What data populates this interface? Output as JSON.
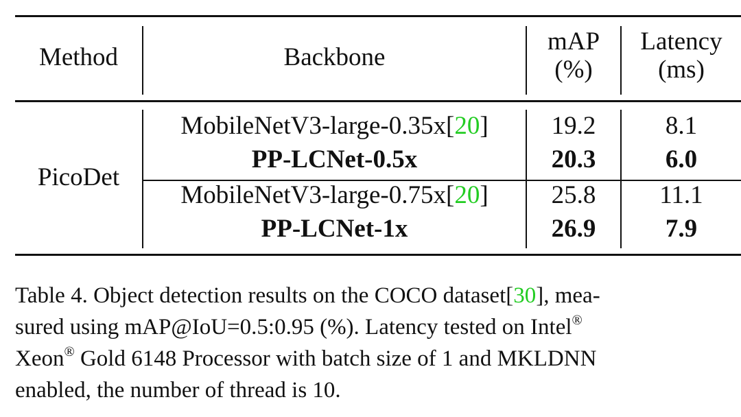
{
  "table": {
    "headers": {
      "method": "Method",
      "backbone": "Backbone",
      "map_line1": "mAP",
      "map_line2": "(%)",
      "latency_line1": "Latency",
      "latency_line2": "(ms)"
    },
    "method": "PicoDet",
    "rows": [
      {
        "backbone": "MobileNetV3-large-0.35x",
        "cite": "20",
        "map": "19.2",
        "latency": "8.1",
        "bold": false
      },
      {
        "backbone": "PP-LCNet-0.5x",
        "cite": "",
        "map": "20.3",
        "latency": "6.0",
        "bold": true
      },
      {
        "backbone": "MobileNetV3-large-0.75x",
        "cite": "20",
        "map": "25.8",
        "latency": "11.1",
        "bold": false
      },
      {
        "backbone": "PP-LCNet-1x",
        "cite": "",
        "map": "26.9",
        "latency": "7.9",
        "bold": true
      }
    ]
  },
  "caption": {
    "line1_a": "Table 4. Object detection results on the COCO dataset[",
    "line1_cite": "30",
    "line1_b": "], mea-",
    "line2_a": "sured using mAP@IoU=0.5:0.95 (%).  Latency tested on Intel",
    "line2_sup": "®",
    "line3_a": "Xeon",
    "line3_sup": "®",
    "line3_b": " Gold 6148 Processor with batch size of 1 and MKLDNN",
    "line4": "enabled, the number of thread is 10."
  },
  "colors": {
    "citation": "#22cc22",
    "text": "#111111"
  }
}
